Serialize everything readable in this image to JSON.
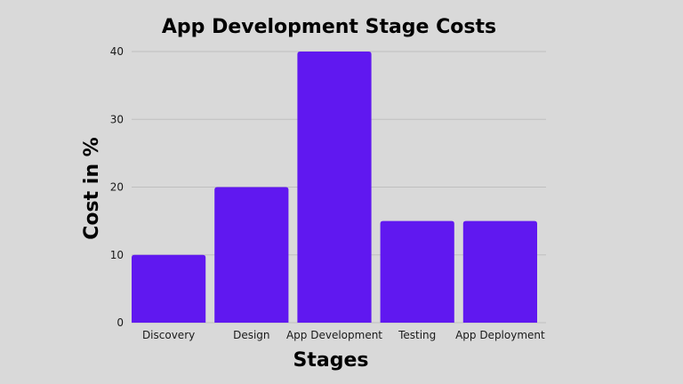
{
  "chart_data": {
    "type": "bar",
    "title": "App Development Stage Costs",
    "xlabel": "Stages",
    "ylabel": "Cost in %",
    "categories": [
      "Discovery",
      "Design",
      "App Development",
      "Testing",
      "App Deployment"
    ],
    "values": [
      10,
      20,
      40,
      15,
      15
    ],
    "ylim": [
      0,
      40
    ],
    "yticks": [
      0,
      10,
      20,
      30,
      40
    ],
    "grid": true,
    "legend": "none",
    "bar_color": "#6018f0",
    "background_color": "#d9d9d9"
  }
}
